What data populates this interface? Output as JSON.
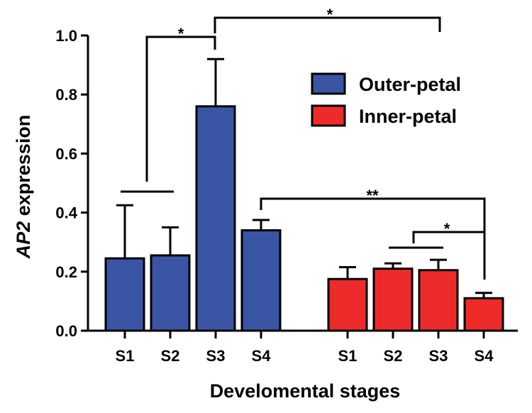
{
  "chart_data": {
    "type": "bar",
    "title": "",
    "xlabel": "Develomental stages",
    "ylabel": {
      "italic_part": "AP2",
      "rest": " expression"
    },
    "ylim": [
      0,
      1.0
    ],
    "yticks": [
      "0.0",
      "0.2",
      "0.4",
      "0.6",
      "0.8",
      "1.0"
    ],
    "grid": false,
    "legend_position": "top-right",
    "series": [
      {
        "name": "Outer-petal",
        "color": "#3a55a4",
        "categories": [
          "S1",
          "S2",
          "S3",
          "S4"
        ],
        "values": [
          0.245,
          0.255,
          0.76,
          0.34
        ],
        "errors": [
          0.18,
          0.095,
          0.16,
          0.035
        ]
      },
      {
        "name": "Inner-petal",
        "color": "#ee2b2b",
        "categories": [
          "S1",
          "S2",
          "S3",
          "S4"
        ],
        "values": [
          0.175,
          0.21,
          0.205,
          0.11
        ],
        "errors": [
          0.04,
          0.018,
          0.035,
          0.018
        ]
      }
    ],
    "significance": [
      {
        "label": "*",
        "between": "Outer-petal S1–S2 vs Outer-petal S3"
      },
      {
        "label": "*",
        "between": "Outer-petal S3 vs Inner-petal S3"
      },
      {
        "label": "**",
        "between": "Outer-petal S4 vs Inner-petal S4"
      },
      {
        "label": "*",
        "between": "Inner-petal S2–S3 vs Inner-petal S4"
      }
    ]
  }
}
